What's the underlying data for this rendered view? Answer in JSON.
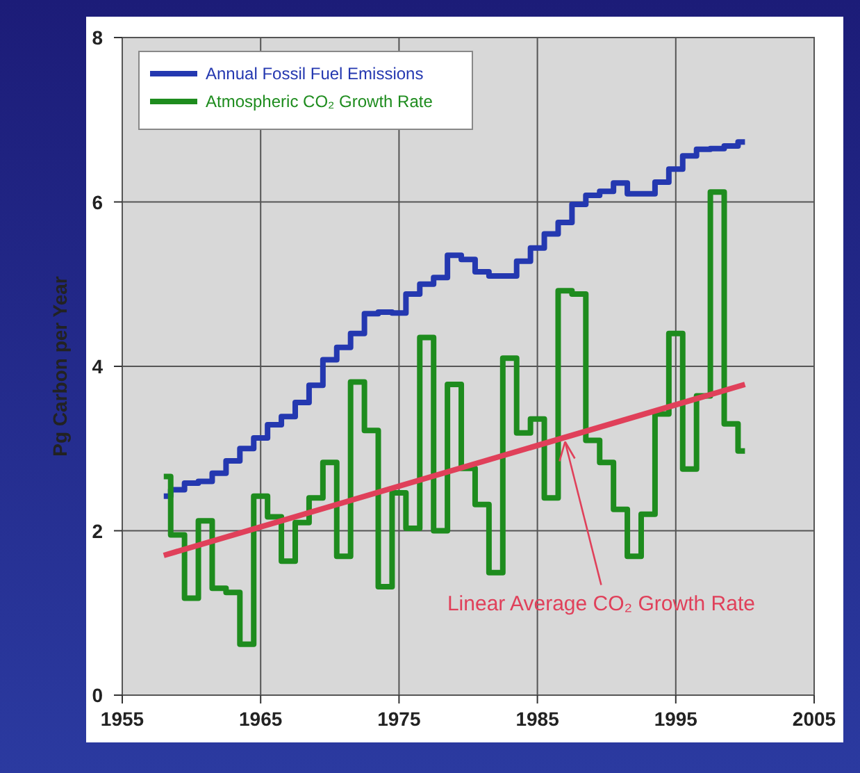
{
  "chart_data": {
    "type": "step",
    "ylabel": "Pg Carbon per Year",
    "x": [
      1958,
      1959,
      1960,
      1961,
      1962,
      1963,
      1964,
      1965,
      1966,
      1967,
      1968,
      1969,
      1970,
      1971,
      1972,
      1973,
      1974,
      1975,
      1976,
      1977,
      1978,
      1979,
      1980,
      1981,
      1982,
      1983,
      1984,
      1985,
      1986,
      1987,
      1988,
      1989,
      1990,
      1991,
      1992,
      1993,
      1994,
      1995,
      1996,
      1997,
      1998,
      1999,
      2000
    ],
    "series": [
      {
        "name": "Annual Fossil Fuel Emissions",
        "color": "#2438b0",
        "values": [
          2.42,
          2.5,
          2.58,
          2.6,
          2.7,
          2.85,
          3.0,
          3.13,
          3.29,
          3.39,
          3.56,
          3.77,
          4.08,
          4.23,
          4.4,
          4.64,
          4.66,
          4.65,
          4.88,
          5.0,
          5.08,
          5.35,
          5.3,
          5.15,
          5.1,
          5.1,
          5.28,
          5.44,
          5.61,
          5.75,
          5.97,
          6.08,
          6.13,
          6.23,
          6.1,
          6.1,
          6.24,
          6.4,
          6.56,
          6.64,
          6.65,
          6.68,
          6.73
        ]
      },
      {
        "name": "Atmospheric CO₂ Growth Rate",
        "color": "#1e8c1e",
        "values": [
          2.66,
          1.95,
          1.18,
          2.12,
          1.3,
          1.25,
          0.62,
          2.42,
          2.17,
          1.63,
          2.1,
          2.4,
          2.83,
          1.69,
          3.81,
          3.22,
          1.32,
          2.46,
          2.03,
          4.35,
          2.0,
          3.78,
          2.76,
          2.32,
          1.49,
          4.1,
          3.19,
          3.36,
          2.4,
          4.92,
          4.88,
          3.1,
          2.83,
          2.26,
          1.69,
          2.2,
          3.42,
          4.4,
          2.75,
          3.64,
          6.12,
          3.3,
          2.97
        ]
      },
      {
        "type": "line",
        "color": "#e0405a",
        "x": [
          1958,
          2000
        ],
        "values": [
          1.7,
          3.78
        ]
      }
    ],
    "annotations": [
      {
        "text": "Linear Average CO₂ Growth Rate",
        "x": 1987,
        "y": 3.15
      }
    ],
    "xlim": [
      1955,
      2005
    ],
    "xticks": [
      1955,
      1965,
      1975,
      1985,
      1995,
      2005
    ],
    "ylim": [
      0,
      8
    ],
    "yticks": [
      0,
      2,
      4,
      6,
      8
    ],
    "grid": true,
    "legend": "top left"
  }
}
